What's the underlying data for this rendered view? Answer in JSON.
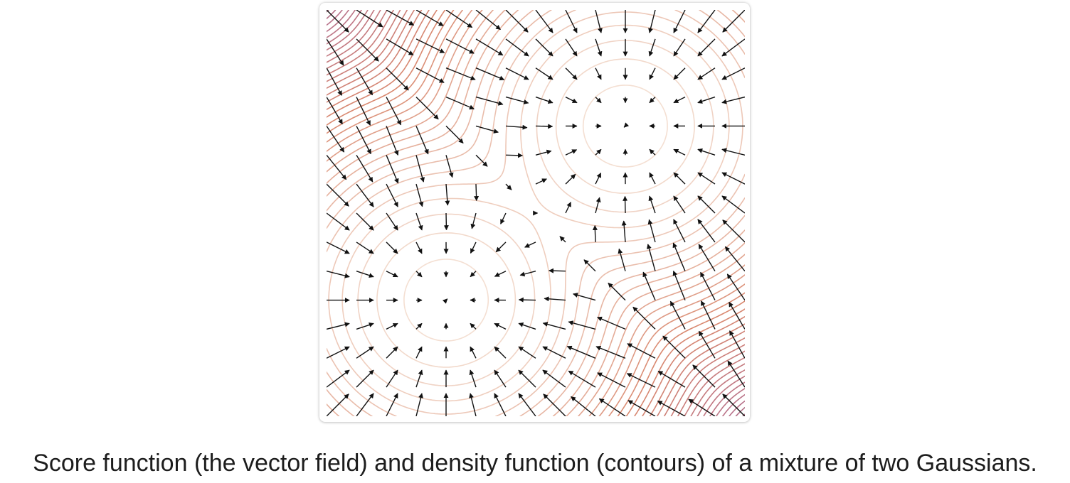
{
  "figure": {
    "caption": "Score function (the vector field) and density function (contours) of a mixture of two Gaussians."
  },
  "plot": {
    "kind": "vector-field-with-contours",
    "mixture": {
      "components": [
        {
          "mean": [
            -1.5,
            -1.5
          ],
          "std": 1.0,
          "weight": 0.5
        },
        {
          "mean": [
            1.5,
            1.5
          ],
          "std": 1.0,
          "weight": 0.5
        }
      ]
    },
    "domain": {
      "x": [
        -3.5,
        3.5
      ],
      "y": [
        -3.5,
        3.5
      ]
    },
    "colors": {
      "contour_low": "#f4dfd2",
      "contour_mid": "#d9886f",
      "contour_high": "#b8728a",
      "contour_top": "#5c5560",
      "arrow": "#111111"
    }
  }
}
